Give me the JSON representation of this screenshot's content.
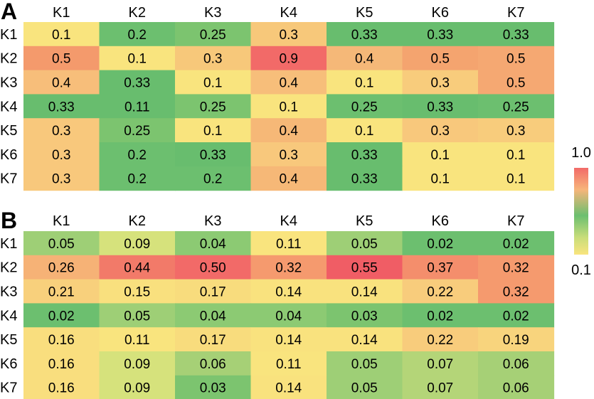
{
  "chart_data": [
    {
      "type": "heatmap",
      "panel": "A",
      "x_categories": [
        "K1",
        "K2",
        "K3",
        "K4",
        "K5",
        "K6",
        "K7"
      ],
      "y_categories": [
        "K1",
        "K2",
        "K3",
        "K4",
        "K5",
        "K6",
        "K7"
      ],
      "value_labels": [
        [
          "0.1",
          "0.2",
          "0.25",
          "0.3",
          "0.33",
          "0.33",
          "0.33"
        ],
        [
          "0.5",
          "0.1",
          "0.3",
          "0.9",
          "0.4",
          "0.5",
          "0.5"
        ],
        [
          "0.4",
          "0.33",
          "0.1",
          "0.4",
          "0.1",
          "0.3",
          "0.5"
        ],
        [
          "0.33",
          "0.11",
          "0.25",
          "0.1",
          "0.25",
          "0.33",
          "0.25"
        ],
        [
          "0.3",
          "0.25",
          "0.1",
          "0.4",
          "0.1",
          "0.3",
          "0.3"
        ],
        [
          "0.3",
          "0.2",
          "0.33",
          "0.3",
          "0.33",
          "0.1",
          "0.1"
        ],
        [
          "0.3",
          "0.2",
          "0.2",
          "0.4",
          "0.33",
          "0.1",
          "0.1"
        ]
      ],
      "colors": [
        [
          "#f9e47e",
          "#6cbf6f",
          "#7cc46f",
          "#f7c87a",
          "#68bd6e",
          "#68bd6e",
          "#68bd6e"
        ],
        [
          "#f49a6c",
          "#f9e47e",
          "#f7c87a",
          "#f26a68",
          "#f5b878",
          "#f4a46f",
          "#f5a872"
        ],
        [
          "#f7be7a",
          "#68bd6e",
          "#f9e47e",
          "#f7be7a",
          "#f9e47e",
          "#f8cc7c",
          "#f5a872"
        ],
        [
          "#68bd6e",
          "#68bd6e",
          "#7cc46f",
          "#f9e47e",
          "#6cbf6f",
          "#68bd6e",
          "#6cbf6f"
        ],
        [
          "#f8c87c",
          "#7cc46f",
          "#f9e47e",
          "#f6b877",
          "#f9e47e",
          "#f8c87c",
          "#f8cc7c"
        ],
        [
          "#f8c87c",
          "#6cbf6f",
          "#68bd6e",
          "#f8c87c",
          "#68bd6e",
          "#f9e47e",
          "#f9e47e"
        ],
        [
          "#f8c87c",
          "#6cbf6f",
          "#6cbf6f",
          "#f6b877",
          "#68bd6e",
          "#f9e47e",
          "#f9e47e"
        ]
      ]
    },
    {
      "type": "heatmap",
      "panel": "B",
      "x_categories": [
        "K1",
        "K2",
        "K3",
        "K4",
        "K5",
        "K6",
        "K7"
      ],
      "y_categories": [
        "K1",
        "K2",
        "K3",
        "K4",
        "K5",
        "K6",
        "K7"
      ],
      "value_labels": [
        [
          "0.05",
          "0.09",
          "0.04",
          "0.11",
          "0.05",
          "0.02",
          "0.02"
        ],
        [
          "0.26",
          "0.44",
          "0.50",
          "0.32",
          "0.55",
          "0.37",
          "0.32"
        ],
        [
          "0.21",
          "0.15",
          "0.17",
          "0.14",
          "0.14",
          "0.22",
          "0.32"
        ],
        [
          "0.02",
          "0.05",
          "0.04",
          "0.04",
          "0.03",
          "0.02",
          "0.02"
        ],
        [
          "0.16",
          "0.11",
          "0.17",
          "0.14",
          "0.14",
          "0.22",
          "0.19"
        ],
        [
          "0.16",
          "0.09",
          "0.06",
          "0.11",
          "0.05",
          "0.07",
          "0.06"
        ],
        [
          "0.16",
          "0.09",
          "0.03",
          "0.14",
          "0.05",
          "0.07",
          "0.06"
        ]
      ],
      "colors": [
        [
          "#9ecf76",
          "#d6e27c",
          "#8cca73",
          "#f9e47e",
          "#9ecf76",
          "#6cbf6f",
          "#6cbf6f"
        ],
        [
          "#f6b276",
          "#f27a69",
          "#f26a68",
          "#f59a6e",
          "#f05d65",
          "#f48e6c",
          "#f59a6e"
        ],
        [
          "#f8d07c",
          "#f9e07e",
          "#f8dc7d",
          "#f9e27e",
          "#f9e27e",
          "#f8cc7c",
          "#f59a6e"
        ],
        [
          "#6cbf6f",
          "#9ecf76",
          "#8cca73",
          "#8cca73",
          "#7cc46f",
          "#6cbf6f",
          "#6cbf6f"
        ],
        [
          "#f9de7e",
          "#f9e47e",
          "#f8dc7d",
          "#f9e27e",
          "#f9e27e",
          "#f8cc7c",
          "#f8d47d"
        ],
        [
          "#f9de7e",
          "#d6e27c",
          "#a6d076",
          "#f9e47e",
          "#9ecf76",
          "#b4d578",
          "#a6d076"
        ],
        [
          "#f9de7e",
          "#d6e27c",
          "#7cc46f",
          "#f9e27e",
          "#9ecf76",
          "#b4d578",
          "#a6d076"
        ]
      ]
    }
  ],
  "color_scale": {
    "max_label": "1.0",
    "min_label": "0.1",
    "colors": [
      "#f26a68",
      "#f7b57a",
      "#6cbf6f",
      "#c8dd7a",
      "#f9e47e"
    ]
  }
}
